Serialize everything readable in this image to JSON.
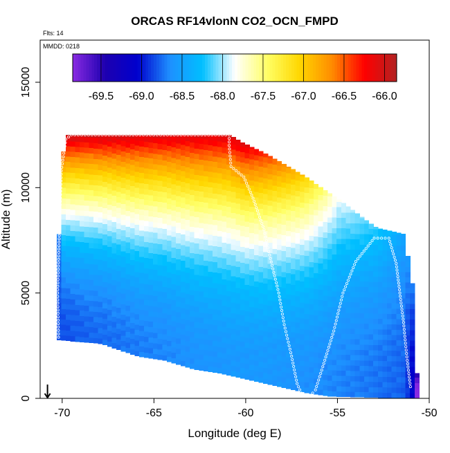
{
  "chart_data": {
    "type": "heatmap",
    "title": "ORCAS RF14vlonN CO2_OCN_FMPD",
    "flights_note": "Flts: 14",
    "date_note": "MMDD: 0218",
    "xlabel": "Longitude (deg E)",
    "ylabel": "Altitude (m)",
    "xlim": [
      -71.2,
      -50
    ],
    "ylim": [
      0,
      17000
    ],
    "x_ticks": [
      -70,
      -65,
      -60,
      -55,
      -50
    ],
    "x_tick_labels": [
      "-70",
      "-65",
      "-60",
      "-55",
      "-50"
    ],
    "y_ticks": [
      0,
      5000,
      10000,
      15000
    ],
    "y_tick_labels": [
      "0",
      "5000",
      "10000",
      "15000"
    ],
    "colorbar": {
      "range": [
        -69.85,
        -65.85
      ],
      "ticks": [
        -69.5,
        -69.0,
        -68.5,
        -68.0,
        -67.5,
        -67.0,
        -66.5,
        -66.0
      ],
      "tick_labels": [
        "-69.5",
        "-69.0",
        "-68.5",
        "-68.0",
        "-67.5",
        "-67.0",
        "-66.5",
        "-66.0"
      ],
      "colors": [
        "#8a2be2",
        "#1d00b0",
        "#0000cd",
        "#1e90ff",
        "#00bfff",
        "#ffffff",
        "#ffff66",
        "#ffd700",
        "#ff8c00",
        "#ff0000",
        "#b22222"
      ]
    },
    "profile_columns": [
      {
        "x": -70.3,
        "ytop": 7800,
        "vlow": -68.75,
        "vhigh": -68.6
      },
      {
        "x": -70.0,
        "ytop": 12500,
        "vlow": -68.75,
        "vhigh": -65.9
      },
      {
        "x": -69.0,
        "ytop": 12500,
        "vlow": -68.7,
        "vhigh": -65.95
      },
      {
        "x": -67.0,
        "ytop": 12500,
        "vlow": -68.65,
        "vhigh": -65.95
      },
      {
        "x": -65.0,
        "ytop": 12500,
        "vlow": -68.6,
        "vhigh": -66.0
      },
      {
        "x": -63.0,
        "ytop": 12500,
        "vlow": -68.55,
        "vhigh": -66.0
      },
      {
        "x": -61.0,
        "ytop": 12500,
        "vlow": -68.5,
        "vhigh": -66.0
      },
      {
        "x": -60.2,
        "ytop": 12100,
        "vlow": -68.5,
        "vhigh": -66.0
      },
      {
        "x": -59.0,
        "ytop": 11600,
        "vlow": -68.5,
        "vhigh": -66.3
      },
      {
        "x": -57.0,
        "ytop": 10600,
        "vlow": -68.55,
        "vhigh": -66.9
      },
      {
        "x": -55.0,
        "ytop": 9400,
        "vlow": -68.6,
        "vhigh": -67.8
      },
      {
        "x": -53.0,
        "ytop": 8100,
        "vlow": -68.65,
        "vhigh": -68.1
      },
      {
        "x": -51.5,
        "ytop": 7800,
        "vlow": -68.7,
        "vhigh": -68.4
      },
      {
        "x": -51.0,
        "ytop": 5200,
        "vlow": -69.0,
        "vhigh": -68.6
      },
      {
        "x": -50.8,
        "ytop": 1200,
        "vlow": -69.8,
        "vhigh": -69.4
      }
    ],
    "bottom_edge": [
      {
        "x": -70.6,
        "y": 2800
      },
      {
        "x": -68.0,
        "y": 2600
      },
      {
        "x": -66.0,
        "y": 2000
      },
      {
        "x": -64.5,
        "y": 1800
      },
      {
        "x": -63.0,
        "y": 1400
      },
      {
        "x": -61.5,
        "y": 1200
      },
      {
        "x": -60.0,
        "y": 900
      },
      {
        "x": -58.5,
        "y": 600
      },
      {
        "x": -57.0,
        "y": 300
      },
      {
        "x": -55.5,
        "y": 100
      },
      {
        "x": -50.8,
        "y": 0
      }
    ],
    "flight_track": [
      {
        "x": -70.2,
        "y": 2900
      },
      {
        "x": -70.25,
        "y": 5000
      },
      {
        "x": -70.2,
        "y": 6600
      },
      {
        "x": -70.05,
        "y": 10800
      },
      {
        "x": -69.8,
        "y": 12300
      },
      {
        "x": -69.5,
        "y": 12500
      },
      {
        "x": -60.9,
        "y": 12500
      },
      {
        "x": -60.9,
        "y": 12000
      },
      {
        "x": -60.8,
        "y": 11000
      },
      {
        "x": -60.1,
        "y": 10500
      },
      {
        "x": -59.6,
        "y": 9500
      },
      {
        "x": -59.0,
        "y": 8000
      },
      {
        "x": -58.7,
        "y": 6800
      },
      {
        "x": -58.2,
        "y": 5000
      },
      {
        "x": -57.9,
        "y": 3500
      },
      {
        "x": -57.5,
        "y": 2000
      },
      {
        "x": -57.2,
        "y": 700
      },
      {
        "x": -56.9,
        "y": 100
      },
      {
        "x": -56.5,
        "y": 100
      },
      {
        "x": -56.2,
        "y": 400
      },
      {
        "x": -55.8,
        "y": 1500
      },
      {
        "x": -55.2,
        "y": 3200
      },
      {
        "x": -54.7,
        "y": 5000
      },
      {
        "x": -54.0,
        "y": 6500
      },
      {
        "x": -53.0,
        "y": 7600
      },
      {
        "x": -52.2,
        "y": 7600
      },
      {
        "x": -51.8,
        "y": 6400
      },
      {
        "x": -51.6,
        "y": 5000
      },
      {
        "x": -51.4,
        "y": 3600
      },
      {
        "x": -51.2,
        "y": 1800
      },
      {
        "x": -51.0,
        "y": 400
      }
    ],
    "start_marker_x": -70.8
  }
}
